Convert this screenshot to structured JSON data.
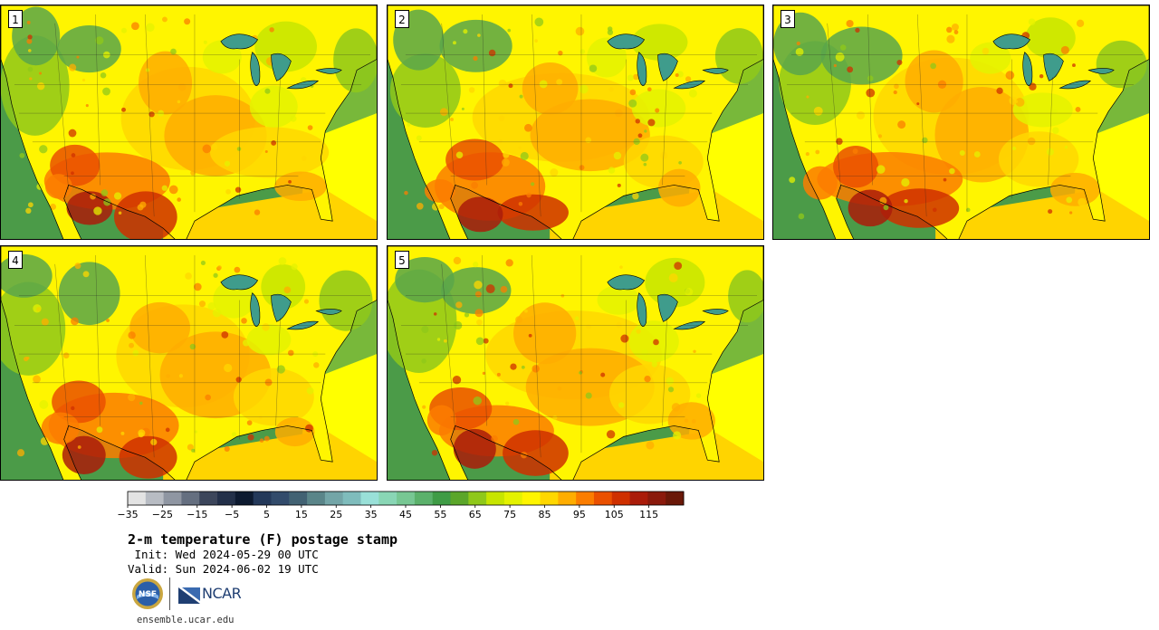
{
  "title": "2-m temperature (F) postage stamp",
  "init": " Init: Wed 2024-05-29 00 UTC",
  "valid": "Valid: Sun 2024-06-02 19 UTC",
  "url": "ensemble.ucar.edu",
  "logos": {
    "ncar": "NCAR",
    "nsf": "NSF"
  },
  "members": [
    {
      "label": "1"
    },
    {
      "label": "2"
    },
    {
      "label": "3"
    },
    {
      "label": "4"
    },
    {
      "label": "5"
    }
  ],
  "colorbar": {
    "min": -35,
    "max": 125,
    "step": 5,
    "tick_labels": [
      "−35",
      "−25",
      "−15",
      "−5",
      "5",
      "15",
      "25",
      "35",
      "45",
      "55",
      "65",
      "75",
      "85",
      "95",
      "105",
      "115"
    ],
    "colors": [
      "#e3e3e3",
      "#b8bcc3",
      "#8f96a2",
      "#656f80",
      "#3c465b",
      "#233049",
      "#0d1a30",
      "#24395a",
      "#324b6b",
      "#426273",
      "#5a8589",
      "#73a5a7",
      "#7fbcbc",
      "#99e0d8",
      "#89d6b5",
      "#77c793",
      "#5bb16b",
      "#3f9c46",
      "#5ba62a",
      "#8fc81a",
      "#c7e500",
      "#e4f200",
      "#fff500",
      "#ffd700",
      "#ffad00",
      "#fb7d00",
      "#ea5000",
      "#cf3000",
      "#aa1c0a",
      "#8a1a0c",
      "#6a1808"
    ]
  }
}
